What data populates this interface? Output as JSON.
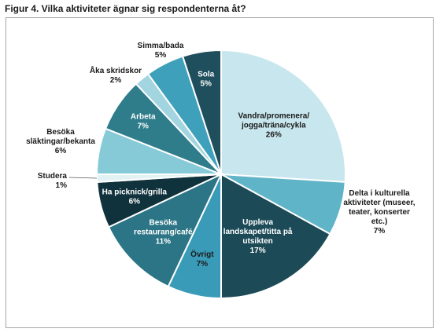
{
  "figure_title": "Figur 4. Vilka aktiviteter ägnar sig respondenterna åt?",
  "chart_data": {
    "type": "pie",
    "title": "Figur 4. Vilka aktiviteter ägnar sig respondenterna åt?",
    "slices": [
      {
        "label": "Vandra/promenera/jogga/träna/cykla",
        "value": 26,
        "value_label": "26%",
        "color": "#c8e6ed"
      },
      {
        "label": "Delta i kulturella aktiviteter (museer, teater, konserter etc.)",
        "value": 7,
        "value_label": "7%",
        "color": "#5fb5c7"
      },
      {
        "label": "Uppleva landskapet/titta på utsikten",
        "value": 17,
        "value_label": "17%",
        "color": "#1c4a57"
      },
      {
        "label": "Övrigt",
        "value": 7,
        "value_label": "7%",
        "color": "#3a9bb8"
      },
      {
        "label": "Besöka restaurang/café",
        "value": 11,
        "value_label": "11%",
        "color": "#2b7586"
      },
      {
        "label": "Ha picknick/grilla",
        "value": 6,
        "value_label": "6%",
        "color": "#10323d"
      },
      {
        "label": "Studera",
        "value": 1,
        "value_label": "1%",
        "color": "#e2f1f4"
      },
      {
        "label": "Besöka släktingar/bekanta",
        "value": 6,
        "value_label": "6%",
        "color": "#86cad8"
      },
      {
        "label": "Arbeta",
        "value": 7,
        "value_label": "7%",
        "color": "#2f7c8b"
      },
      {
        "label": "Åka skridskor",
        "value": 2,
        "value_label": "2%",
        "color": "#a3d5e0"
      },
      {
        "label": "Simma/bada",
        "value": 5,
        "value_label": "5%",
        "color": "#3fa0bb"
      },
      {
        "label": "Sola",
        "value": 5,
        "value_label": "5%",
        "color": "#1f4f5d"
      }
    ],
    "label_lines": [
      [
        "Vandra/promenera/",
        "jogga/träna/cykla",
        "26%"
      ],
      [
        "Delta i kulturella",
        "aktiviteter (museer,",
        "teater, konserter",
        "etc.)",
        "7%"
      ],
      [
        "Uppleva",
        "landskapet/titta på",
        "utsikten",
        "17%"
      ],
      [
        "Övrigt",
        "7%"
      ],
      [
        "Besöka",
        "restaurang/café",
        "11%"
      ],
      [
        "Ha picknick/grilla",
        "6%"
      ],
      [
        "Studera",
        "1%"
      ],
      [
        "Besöka",
        "släktingar/bekanta",
        "6%"
      ],
      [
        "Arbeta",
        "7%"
      ],
      [
        "Åka skridskor",
        "2%"
      ],
      [
        "Simma/bada",
        "5%"
      ],
      [
        "Sola",
        "5%"
      ]
    ],
    "label_placement": [
      "inside",
      "outside",
      "inside",
      "inside",
      "inside",
      "inside",
      "outside",
      "outside",
      "inside",
      "outside",
      "outside",
      "inside"
    ],
    "label_colors": [
      "#1a1a1a",
      "#1a1a1a",
      "#ffffff",
      "#1a1a1a",
      "#ffffff",
      "#ffffff",
      "#1a1a1a",
      "#1a1a1a",
      "#ffffff",
      "#1a1a1a",
      "#1a1a1a",
      "#ffffff"
    ],
    "start_angle": "top",
    "direction": "clockwise",
    "legend": "none"
  }
}
